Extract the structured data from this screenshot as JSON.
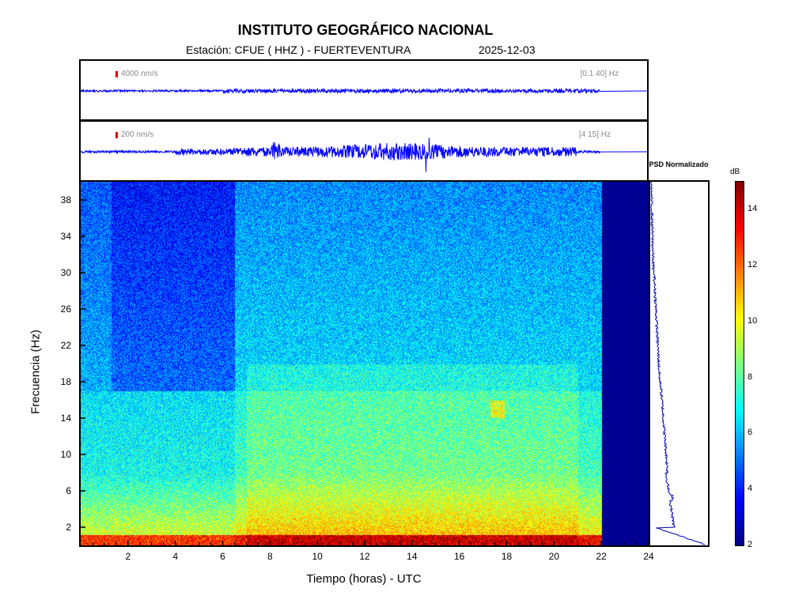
{
  "title": "INSTITUTO GEOGRÁFICO NACIONAL",
  "subtitle": "Estación:  CFUE ( HHZ ) - FUERTEVENTURA",
  "date": "2025-12-03",
  "trace1": {
    "scale": "4000 nm/s",
    "band": "[0.1 40] Hz"
  },
  "trace2": {
    "scale": "200 nm/s",
    "band": "[4 15] Hz"
  },
  "psd_title": "PSD Normalizado",
  "colorbar": {
    "unit": "dB",
    "ticks": [
      "2",
      "4",
      "6",
      "8",
      "10",
      "12",
      "14"
    ],
    "range": [
      2,
      15
    ]
  },
  "chart_data": {
    "type": "heatmap",
    "xlabel": "Tiempo (horas) - UTC",
    "ylabel": "Frecuencia  (Hz)",
    "x_ticks": [
      "2",
      "4",
      "6",
      "8",
      "10",
      "12",
      "14",
      "16",
      "18",
      "20",
      "22",
      "24"
    ],
    "y_ticks": [
      "2",
      "6",
      "10",
      "14",
      "18",
      "22",
      "26",
      "30",
      "34",
      "38"
    ],
    "xlim": [
      0,
      24
    ],
    "ylim": [
      0,
      40
    ],
    "data_end_hour": 22,
    "colormap": "jet"
  }
}
